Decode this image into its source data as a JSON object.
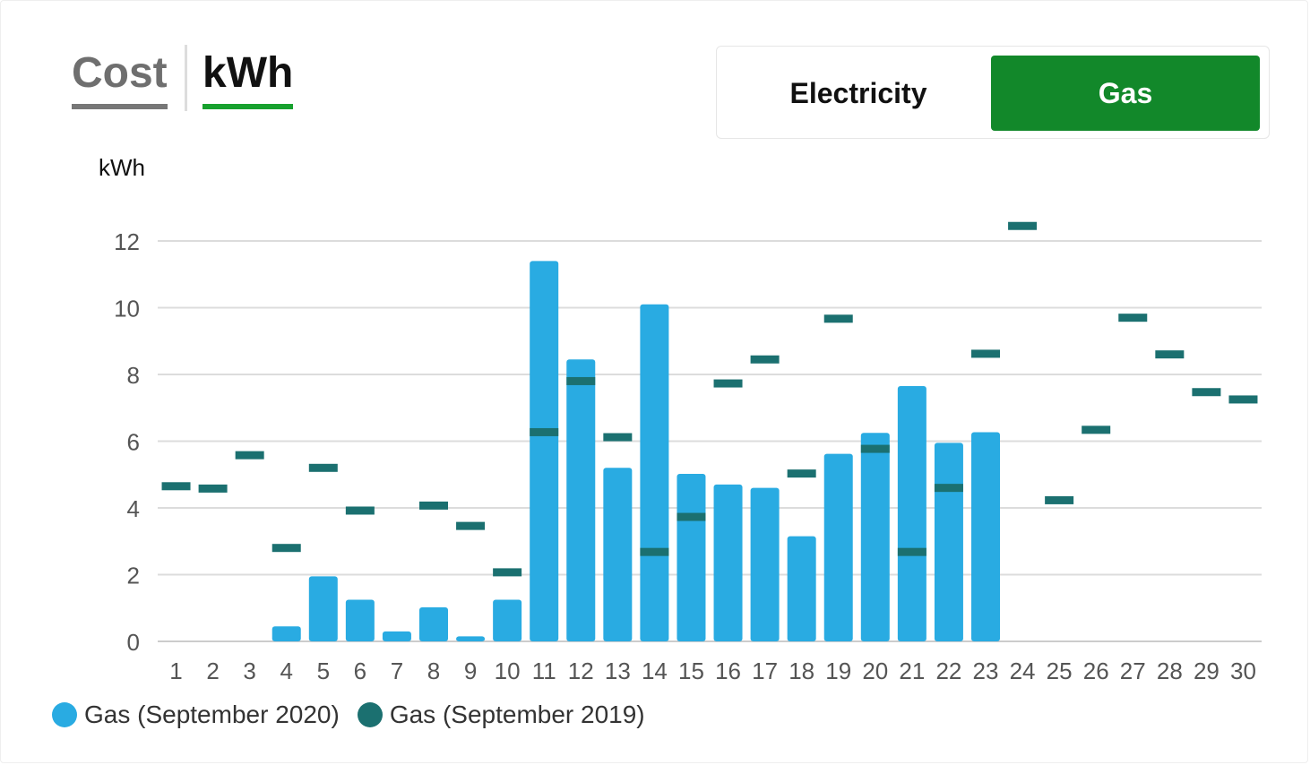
{
  "unit_tabs": {
    "cost_label": "Cost",
    "kwh_label": "kWh",
    "selected": "kWh"
  },
  "fuel_toggle": {
    "electricity_label": "Electricity",
    "gas_label": "Gas",
    "selected": "Gas"
  },
  "colors": {
    "current": "#29abe2",
    "previous": "#1b7070",
    "active_green": "#12882a",
    "grid": "#dcdcdc"
  },
  "chart_data": {
    "type": "bar",
    "title": "",
    "xlabel": "",
    "ylabel": "kWh",
    "ylim": [
      0,
      12
    ],
    "yticks": [
      0,
      2,
      4,
      6,
      8,
      10,
      12
    ],
    "grid": true,
    "legend_position": "bottom-left",
    "categories": [
      "1",
      "2",
      "3",
      "4",
      "5",
      "6",
      "7",
      "8",
      "9",
      "10",
      "11",
      "12",
      "13",
      "14",
      "15",
      "16",
      "17",
      "18",
      "19",
      "20",
      "21",
      "22",
      "23",
      "24",
      "25",
      "26",
      "27",
      "28",
      "29",
      "30"
    ],
    "series": [
      {
        "name": "Gas (September 2020)",
        "mark": "bar",
        "color": "#29abe2",
        "values": [
          null,
          null,
          null,
          0.45,
          1.95,
          1.25,
          0.3,
          1.02,
          0.15,
          1.25,
          11.4,
          8.45,
          5.2,
          10.1,
          5.02,
          4.7,
          4.6,
          3.15,
          5.62,
          6.25,
          7.65,
          5.95,
          6.27,
          null,
          null,
          null,
          null,
          null,
          null,
          null
        ]
      },
      {
        "name": "Gas (September 2019)",
        "mark": "dash",
        "color": "#1b7070",
        "values": [
          4.65,
          4.58,
          5.58,
          2.8,
          5.2,
          3.92,
          null,
          4.07,
          3.46,
          2.07,
          6.27,
          7.8,
          6.12,
          2.68,
          3.73,
          7.73,
          8.45,
          5.03,
          9.67,
          5.77,
          2.68,
          4.6,
          8.62,
          12.45,
          4.23,
          6.34,
          9.7,
          8.6,
          7.47,
          7.25
        ]
      }
    ]
  }
}
